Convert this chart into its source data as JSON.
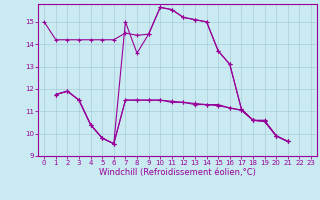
{
  "background_color": "#c8eaf0",
  "line_color": "#990099",
  "grid_color": "#aaccdd",
  "xlabel": "Windchill (Refroidissement éolien,°C)",
  "xlabel_fontsize": 6,
  "ylim": [
    9,
    15.8
  ],
  "xlim": [
    -0.5,
    23.5
  ],
  "yticks": [
    9,
    10,
    11,
    12,
    13,
    14,
    15
  ],
  "xticks": [
    0,
    1,
    2,
    3,
    4,
    5,
    6,
    7,
    8,
    9,
    10,
    11,
    12,
    13,
    14,
    15,
    16,
    17,
    18,
    19,
    20,
    21,
    22,
    23
  ],
  "series": [
    {
      "x": [
        0,
        1,
        2,
        3,
        4,
        5,
        6,
        7,
        8,
        9,
        10,
        11,
        12,
        13,
        14,
        15,
        16,
        17,
        18,
        19,
        20,
        21
      ],
      "y": [
        15.0,
        14.2,
        14.2,
        14.2,
        14.2,
        14.2,
        14.2,
        14.5,
        14.4,
        14.45,
        15.65,
        15.55,
        15.2,
        15.1,
        15.0,
        13.7,
        13.1,
        11.1,
        10.6,
        10.6,
        9.9,
        9.65
      ]
    },
    {
      "x": [
        1,
        2,
        3,
        4,
        5,
        6,
        7,
        8,
        9,
        10,
        11,
        12,
        13,
        14,
        15,
        16,
        17,
        18,
        19,
        20,
        21
      ],
      "y": [
        11.75,
        11.9,
        11.5,
        10.4,
        9.8,
        9.55,
        11.5,
        11.5,
        11.5,
        11.5,
        11.4,
        11.4,
        11.35,
        11.3,
        11.3,
        11.15,
        11.05,
        10.6,
        10.55,
        9.9,
        9.65
      ]
    },
    {
      "x": [
        1,
        2,
        3,
        4,
        5,
        6,
        7,
        8,
        9,
        10,
        11,
        12,
        13,
        14,
        15,
        16,
        17,
        18,
        19,
        20,
        21
      ],
      "y": [
        11.75,
        11.9,
        11.5,
        10.4,
        9.8,
        9.55,
        15.0,
        13.6,
        14.45,
        15.65,
        15.55,
        15.2,
        15.1,
        15.0,
        13.7,
        13.1,
        11.1,
        10.6,
        10.55,
        9.9,
        9.65
      ]
    },
    {
      "x": [
        1,
        2,
        3,
        4,
        5,
        6,
        7,
        8,
        9,
        10,
        11,
        12,
        13,
        14,
        15,
        16,
        17,
        18,
        19,
        20,
        21
      ],
      "y": [
        11.75,
        11.9,
        11.5,
        10.4,
        9.8,
        9.55,
        11.5,
        11.5,
        11.5,
        11.5,
        11.45,
        11.4,
        11.3,
        11.3,
        11.25,
        11.15,
        11.05,
        10.6,
        10.55,
        9.9,
        9.65
      ]
    }
  ]
}
